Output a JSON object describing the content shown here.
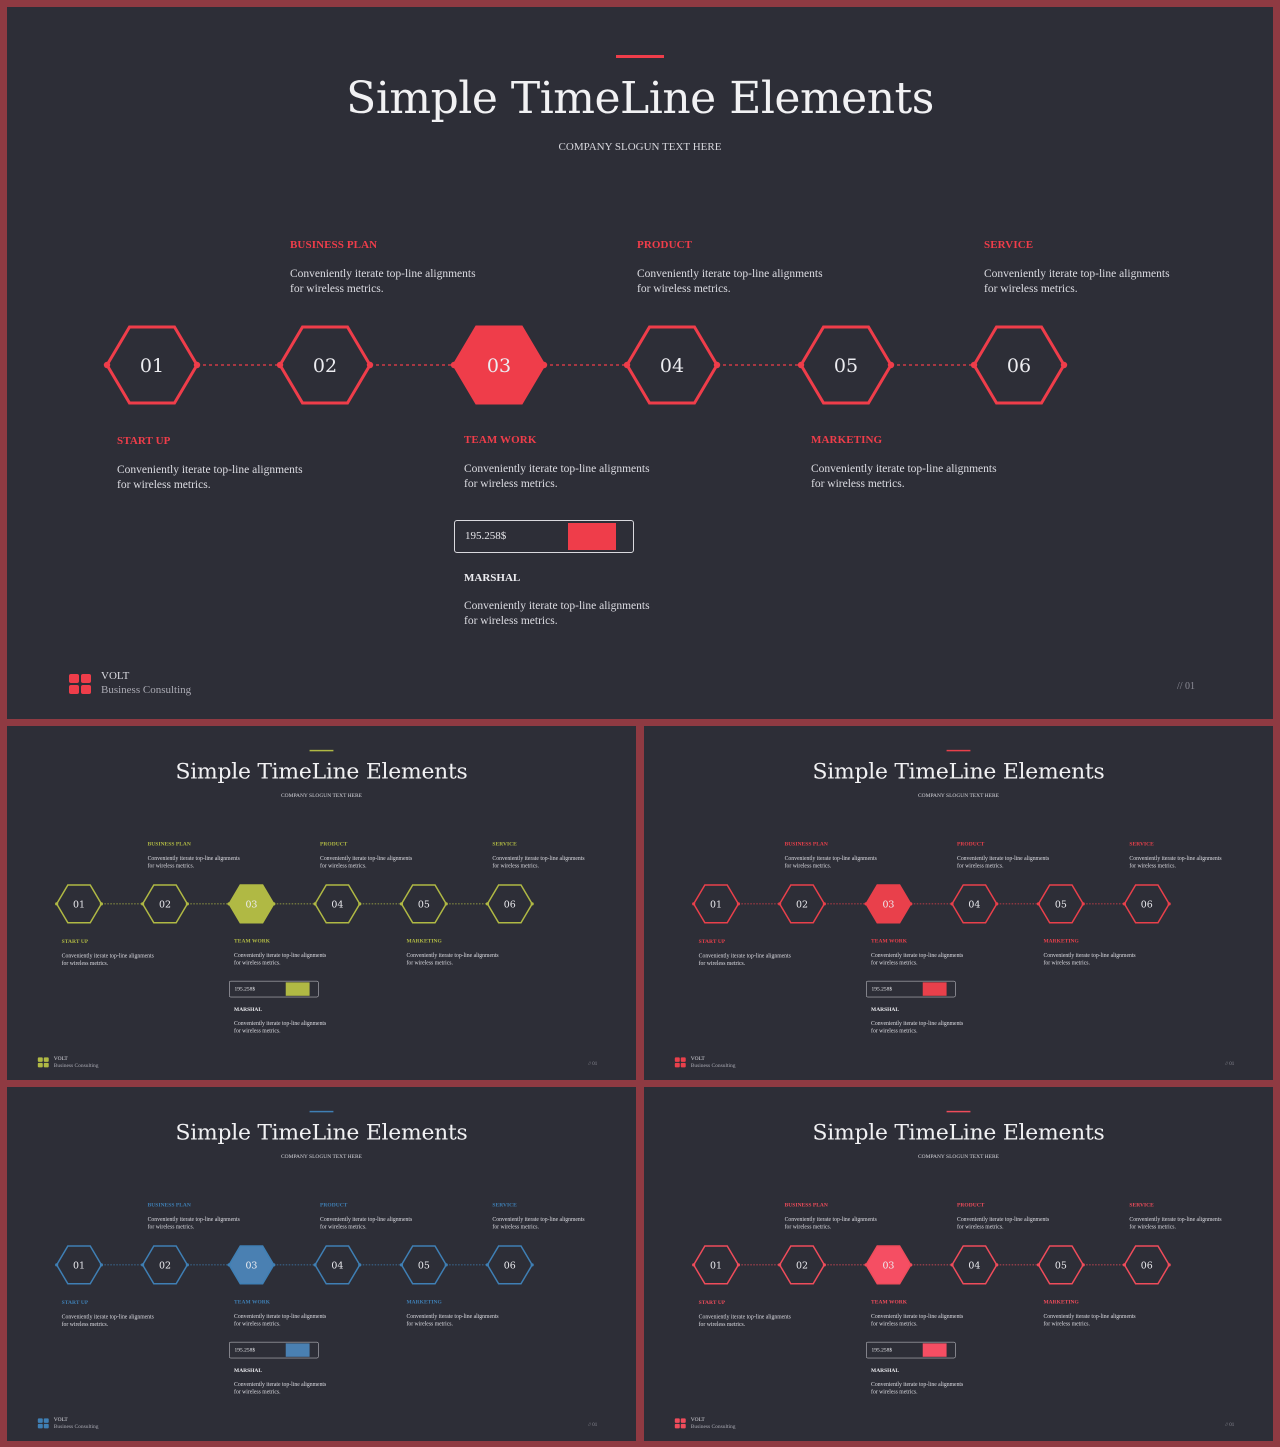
{
  "slide": {
    "title": "Simple TimeLine Elements",
    "slogan": "COMPANY SLOGUN TEXT HERE",
    "steps": [
      "01",
      "02",
      "03",
      "04",
      "05",
      "06"
    ],
    "active_step": "03",
    "items_top": [
      {
        "title": "BUSINESS PLAN",
        "desc": "Conveniently iterate top-line alignments for wireless metrics."
      },
      {
        "title": "PRODUCT",
        "desc": "Conveniently iterate top-line alignments for wireless metrics."
      },
      {
        "title": "SERVICE",
        "desc": "Conveniently iterate top-line alignments for wireless metrics."
      }
    ],
    "items_bottom": [
      {
        "title": "START UP",
        "desc": "Conveniently iterate top-line alignments for wireless metrics."
      },
      {
        "title": "TEAM WORK",
        "desc": "Conveniently iterate top-line alignments for wireless metrics."
      },
      {
        "title": "MARKETING",
        "desc": "Conveniently iterate top-line alignments for wireless metrics."
      }
    ],
    "progress": {
      "value": "195.258$",
      "fill_fraction": 0.28
    },
    "marshal": {
      "name": "MARSHAL",
      "desc": "Conveniently iterate top-line alignments for wireless metrics."
    },
    "brand": {
      "name": "VOLT",
      "sub": "Business  Consulting"
    },
    "page_number": "// 01"
  },
  "variants": [
    {
      "accent": "#ef3d4a",
      "fill": "#ef3d4a"
    },
    {
      "accent": "#b0b944",
      "fill": "#b0b944"
    },
    {
      "accent": "#e9404b",
      "fill": "#e9404b"
    },
    {
      "accent": "#3f7fb4",
      "fill": "#4a80b2"
    },
    {
      "accent": "#ef4c5b",
      "fill": "#f54e63"
    }
  ]
}
